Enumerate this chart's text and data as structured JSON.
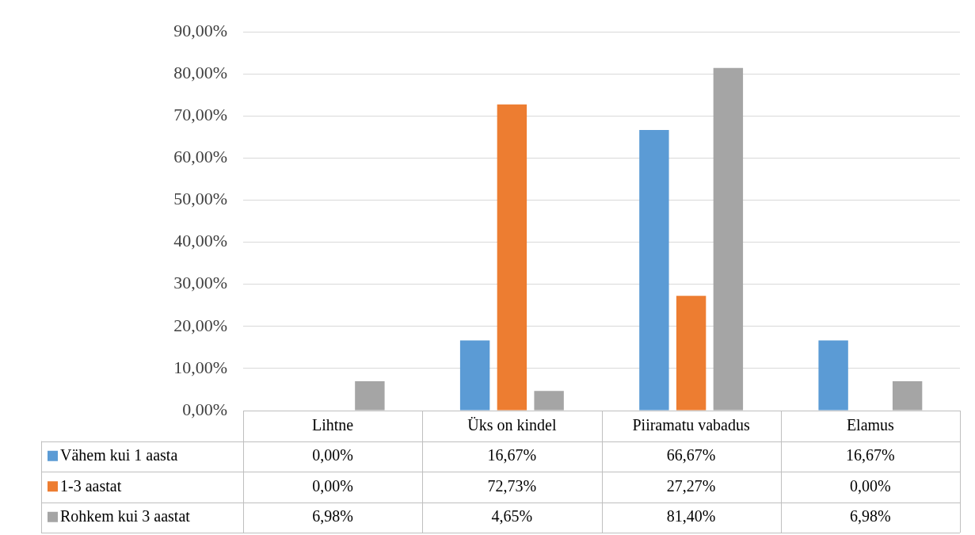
{
  "chart_data": {
    "type": "bar",
    "categories": [
      "Lihtne",
      "Üks on kindel",
      "Piiramatu vabadus",
      "Elamus"
    ],
    "series": [
      {
        "name": "Vähem kui 1 aasta",
        "color": "#5b9bd5",
        "values": [
          0,
          16.67,
          66.67,
          16.67
        ],
        "value_labels": [
          "0,00%",
          "16,67%",
          "66,67%",
          "16,67%"
        ]
      },
      {
        "name": "1-3 aastat",
        "color": "#ed7d31",
        "values": [
          0,
          72.73,
          27.27,
          0
        ],
        "value_labels": [
          "0,00%",
          "72,73%",
          "27,27%",
          "0,00%"
        ]
      },
      {
        "name": "Rohkem kui 3 aastat",
        "color": "#a5a5a5",
        "values": [
          6.98,
          4.65,
          81.4,
          6.98
        ],
        "value_labels": [
          "6,98%",
          "4,65%",
          "81,40%",
          "6,98%"
        ]
      }
    ],
    "ylim": [
      0,
      90
    ],
    "yticks": [
      {
        "value": 0,
        "label": "0,00%"
      },
      {
        "value": 10,
        "label": "10,00%"
      },
      {
        "value": 20,
        "label": "20,00%"
      },
      {
        "value": 30,
        "label": "30,00%"
      },
      {
        "value": 40,
        "label": "40,00%"
      },
      {
        "value": 50,
        "label": "50,00%"
      },
      {
        "value": 60,
        "label": "60,00%"
      },
      {
        "value": 70,
        "label": "70,00%"
      },
      {
        "value": 80,
        "label": "80,00%"
      },
      {
        "value": 90,
        "label": "90,00%"
      }
    ],
    "grid": "y",
    "legend": "bottom left"
  }
}
